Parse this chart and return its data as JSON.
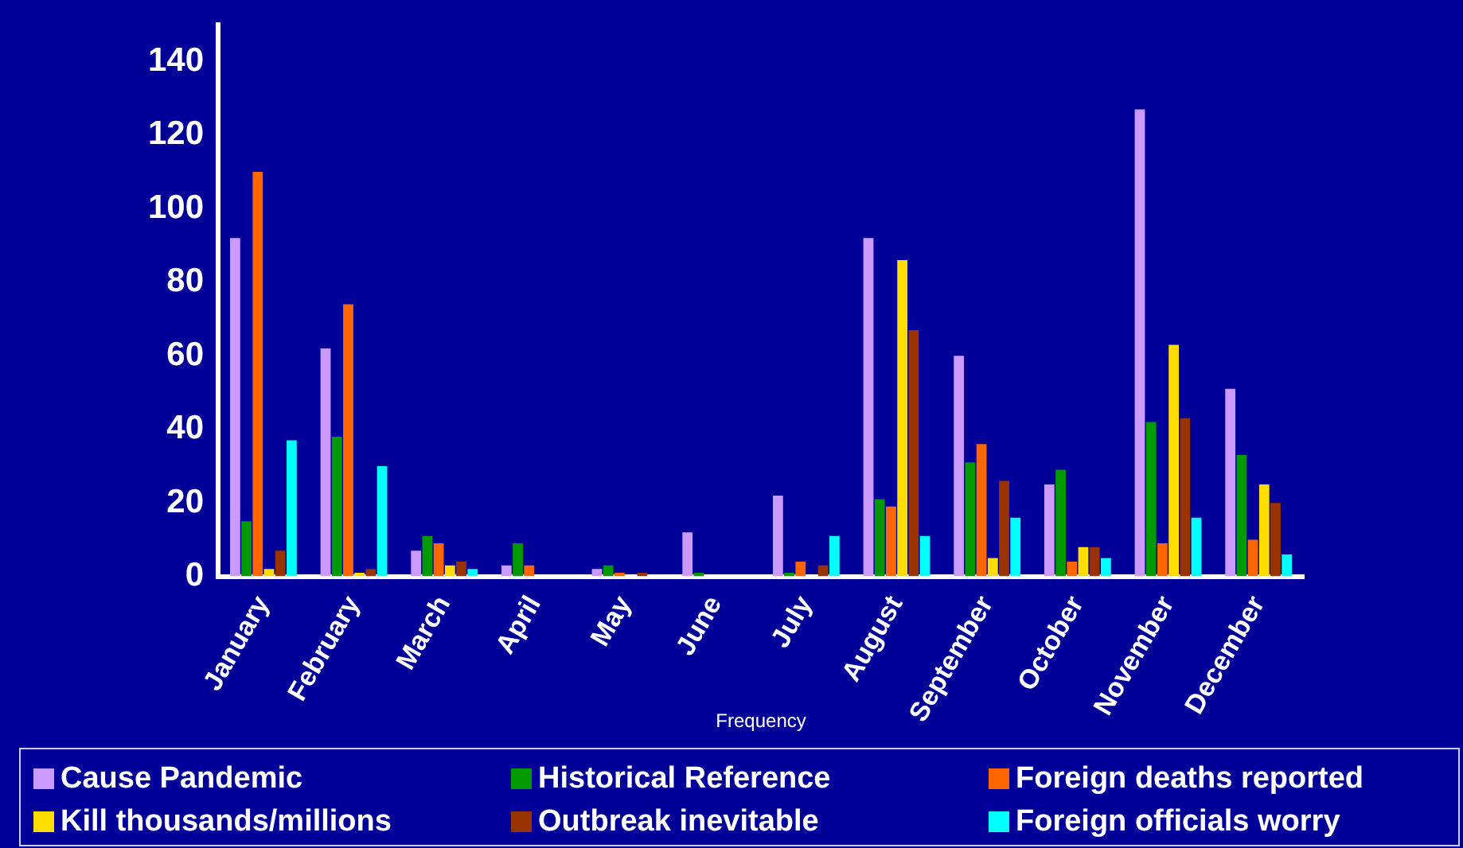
{
  "chart_data": {
    "type": "bar",
    "xlabel": "Frequency",
    "categories": [
      "January",
      "February",
      "March",
      "April",
      "May",
      "June",
      "July",
      "August",
      "September",
      "October",
      "November",
      "December"
    ],
    "series": [
      {
        "name": "Cause Pandemic",
        "color": "#cc99ff",
        "values": [
          92,
          62,
          7,
          3,
          2,
          12,
          22,
          92,
          60,
          25,
          127,
          51
        ]
      },
      {
        "name": "Historical Reference",
        "color": "#009900",
        "values": [
          15,
          38,
          11,
          9,
          3,
          1,
          1,
          21,
          31,
          29,
          42,
          33
        ]
      },
      {
        "name": "Foreign deaths reported",
        "color": "#ff6600",
        "values": [
          110,
          74,
          9,
          3,
          1,
          0,
          4,
          19,
          36,
          4,
          9,
          10
        ]
      },
      {
        "name": "Kill thousands/millions",
        "color": "#ffdd00",
        "values": [
          2,
          1,
          3,
          0,
          0,
          0,
          0,
          86,
          5,
          8,
          63,
          25
        ]
      },
      {
        "name": "Outbreak inevitable",
        "color": "#993300",
        "values": [
          7,
          2,
          4,
          0,
          1,
          0,
          3,
          67,
          26,
          8,
          43,
          20
        ]
      },
      {
        "name": "Foreign officials worry",
        "color": "#00ffff",
        "values": [
          37,
          30,
          2,
          0,
          0,
          0,
          11,
          11,
          16,
          5,
          16,
          6
        ]
      }
    ],
    "ylim": [
      0,
      150
    ],
    "yticks": [
      0,
      20,
      40,
      60,
      80,
      100,
      120,
      140
    ],
    "grid": false,
    "legend": "bottom"
  }
}
